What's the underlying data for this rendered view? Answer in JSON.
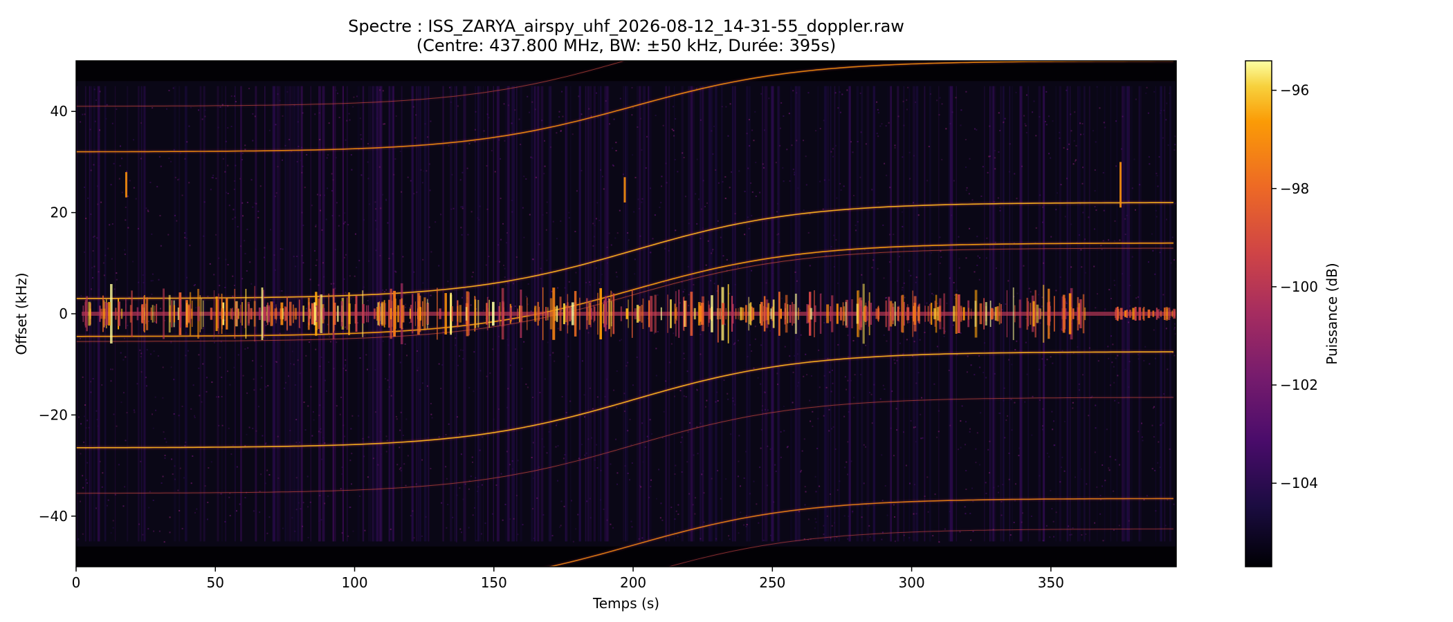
{
  "chart_data": {
    "type": "heatmap",
    "title_line1": "Spectre : ISS_ZARYA_airspy_uhf_2026-08-12_14-31-55_doppler.raw",
    "title_line2": "(Centre: 437.800 MHz, BW: ±50 kHz, Durée: 395s)",
    "xlabel": "Temps (s)",
    "ylabel": "Offset (kHz)",
    "xlim": [
      0,
      395
    ],
    "ylim": [
      -50,
      50
    ],
    "xticks": [
      0,
      50,
      100,
      150,
      200,
      250,
      300,
      350
    ],
    "yticks": [
      -40,
      -20,
      0,
      20,
      40
    ],
    "colormap": "inferno",
    "colorbar": {
      "label": "Puissance (dB)",
      "range": [
        -105.7,
        -95.4
      ],
      "ticks": [
        -96,
        -98,
        -100,
        -102,
        -104
      ]
    },
    "doppler_traces": [
      {
        "center_start": 32,
        "center_end": 50,
        "strength": 0.75
      },
      {
        "center_start": 3,
        "center_end": 22,
        "strength": 0.9
      },
      {
        "center_start": -4.5,
        "center_end": 14,
        "strength": 0.85
      },
      {
        "center_start": -26.5,
        "center_end": -7.5,
        "strength": 0.9
      },
      {
        "center_start": -55,
        "center_end": -36.5,
        "strength": 0.7
      },
      {
        "center_start": 41,
        "center_end": 60,
        "strength": 0.25
      },
      {
        "center_start": -35.5,
        "center_end": -16.5,
        "strength": 0.25
      },
      {
        "center_start": -5.5,
        "center_end": 13,
        "strength": 0.3
      },
      {
        "center_start": -61.5,
        "center_end": -42.5,
        "strength": 0.2
      }
    ],
    "doppler_curve": {
      "t_mid": 200,
      "width_s": 60
    },
    "bursts": {
      "center_offset": 0,
      "t_start": 2,
      "t_end": 362,
      "t_resume": 372,
      "t_stop": 395
    },
    "vertical_spikes": [
      {
        "t": 18,
        "offset_low": 23,
        "offset_high": 28
      },
      {
        "t": 197,
        "offset_low": 22,
        "offset_high": 27
      },
      {
        "t": 375,
        "offset_low": 21,
        "offset_high": 30
      }
    ],
    "colors": {
      "background": "#ffffff",
      "axis": "#000000",
      "plot_floor": "#0a0716"
    }
  }
}
